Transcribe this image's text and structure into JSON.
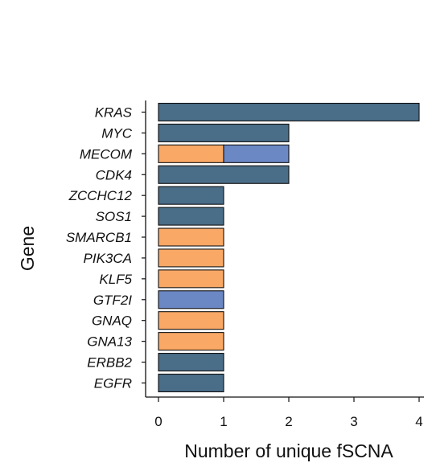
{
  "chart_data": {
    "type": "bar",
    "orientation": "horizontal",
    "stacked": true,
    "xlabel": "Number of unique fSCNA",
    "ylabel": "Gene",
    "xlim": [
      0,
      4
    ],
    "x_ticks": [
      "0",
      "1",
      "2",
      "3",
      "4"
    ],
    "categories": [
      "KRAS",
      "MYC",
      "MECOM",
      "CDK4",
      "ZCCHC12",
      "SOS1",
      "SMARCB1",
      "PIK3CA",
      "KLF5",
      "GTF2I",
      "GNAQ",
      "GNA13",
      "ERBB2",
      "EGFR"
    ],
    "series": [
      {
        "color": "#4a6d88",
        "values": [
          4,
          2,
          0,
          2,
          1,
          1,
          0,
          0,
          0,
          0,
          0,
          0,
          1,
          1
        ]
      },
      {
        "color": "#f9a866",
        "values": [
          0,
          0,
          1,
          0,
          0,
          0,
          1,
          1,
          1,
          0,
          1,
          1,
          0,
          0
        ]
      },
      {
        "color": "#6b87c4",
        "values": [
          0,
          0,
          1,
          0,
          0,
          0,
          0,
          0,
          0,
          1,
          0,
          0,
          0,
          0
        ]
      }
    ],
    "grid": false,
    "legend": "none"
  }
}
